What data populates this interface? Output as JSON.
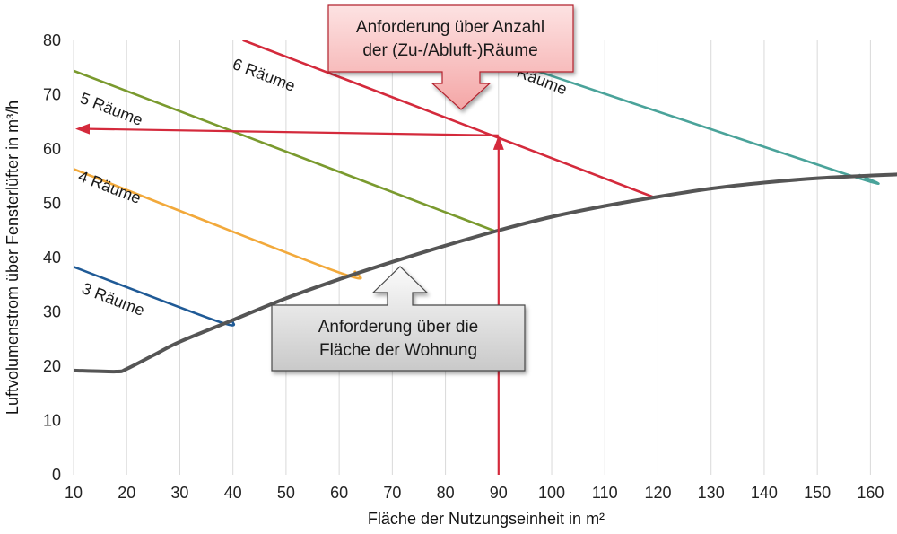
{
  "chart_data": {
    "type": "line",
    "xlabel": "Fläche der Nutzungseinheit in m²",
    "ylabel": "Luftvolumenstrom über Fensterlüfter in m³/h",
    "xlim": [
      10,
      165
    ],
    "ylim": [
      0,
      80
    ],
    "x_ticks": [
      10,
      20,
      30,
      40,
      50,
      60,
      70,
      80,
      90,
      100,
      110,
      120,
      130,
      140,
      150,
      160
    ],
    "y_ticks": [
      0,
      10,
      20,
      30,
      40,
      50,
      60,
      70,
      80
    ],
    "grid": "vertical",
    "colors": {
      "area": "#555555",
      "r3": "#1f5a96",
      "r4": "#f2a93b",
      "r5": "#7a9a2e",
      "r6": "#d42a3c",
      "r7": "#4aa39a",
      "arrow": "#d42a3c"
    },
    "series": [
      {
        "key": "area",
        "x": [
          10,
          18,
          20,
          25,
          30,
          40,
          50,
          60,
          70,
          80,
          90,
          100,
          110,
          120,
          130,
          140,
          150,
          160,
          165
        ],
        "y": [
          19.2,
          19.0,
          19.5,
          22.0,
          24.5,
          28.5,
          32.5,
          36.0,
          39.2,
          42.2,
          45.0,
          47.5,
          49.5,
          51.2,
          52.7,
          53.8,
          54.6,
          55.1,
          55.3
        ]
      },
      {
        "key": "r3",
        "name": "3 Räume",
        "x": [
          10,
          37,
          40
        ],
        "y": [
          38.3,
          28.3,
          28.2
        ]
      },
      {
        "key": "r4",
        "name": "4 Räume",
        "x": [
          10,
          59,
          63
        ],
        "y": [
          56.3,
          37.6,
          37.4
        ]
      },
      {
        "key": "r5",
        "name": "5 Räume",
        "x": [
          10,
          89
        ],
        "y": [
          74.4,
          45.0
        ]
      },
      {
        "key": "r6",
        "name": "6 Räume",
        "x": [
          42,
          119
        ],
        "y": [
          80.0,
          51.2
        ]
      },
      {
        "key": "r7",
        "name": "Räume",
        "x": [
          80,
          155,
          158
        ],
        "y": [
          80.0,
          55.5,
          55.2
        ]
      }
    ],
    "reading": {
      "x": 90,
      "y": 62.5
    },
    "callouts": {
      "rooms": [
        "Anforderung über Anzahl",
        "der (Zu-/Abluft-)Räume"
      ],
      "area": [
        "Anforderung über die",
        "Fläche der Wohnung"
      ]
    }
  }
}
